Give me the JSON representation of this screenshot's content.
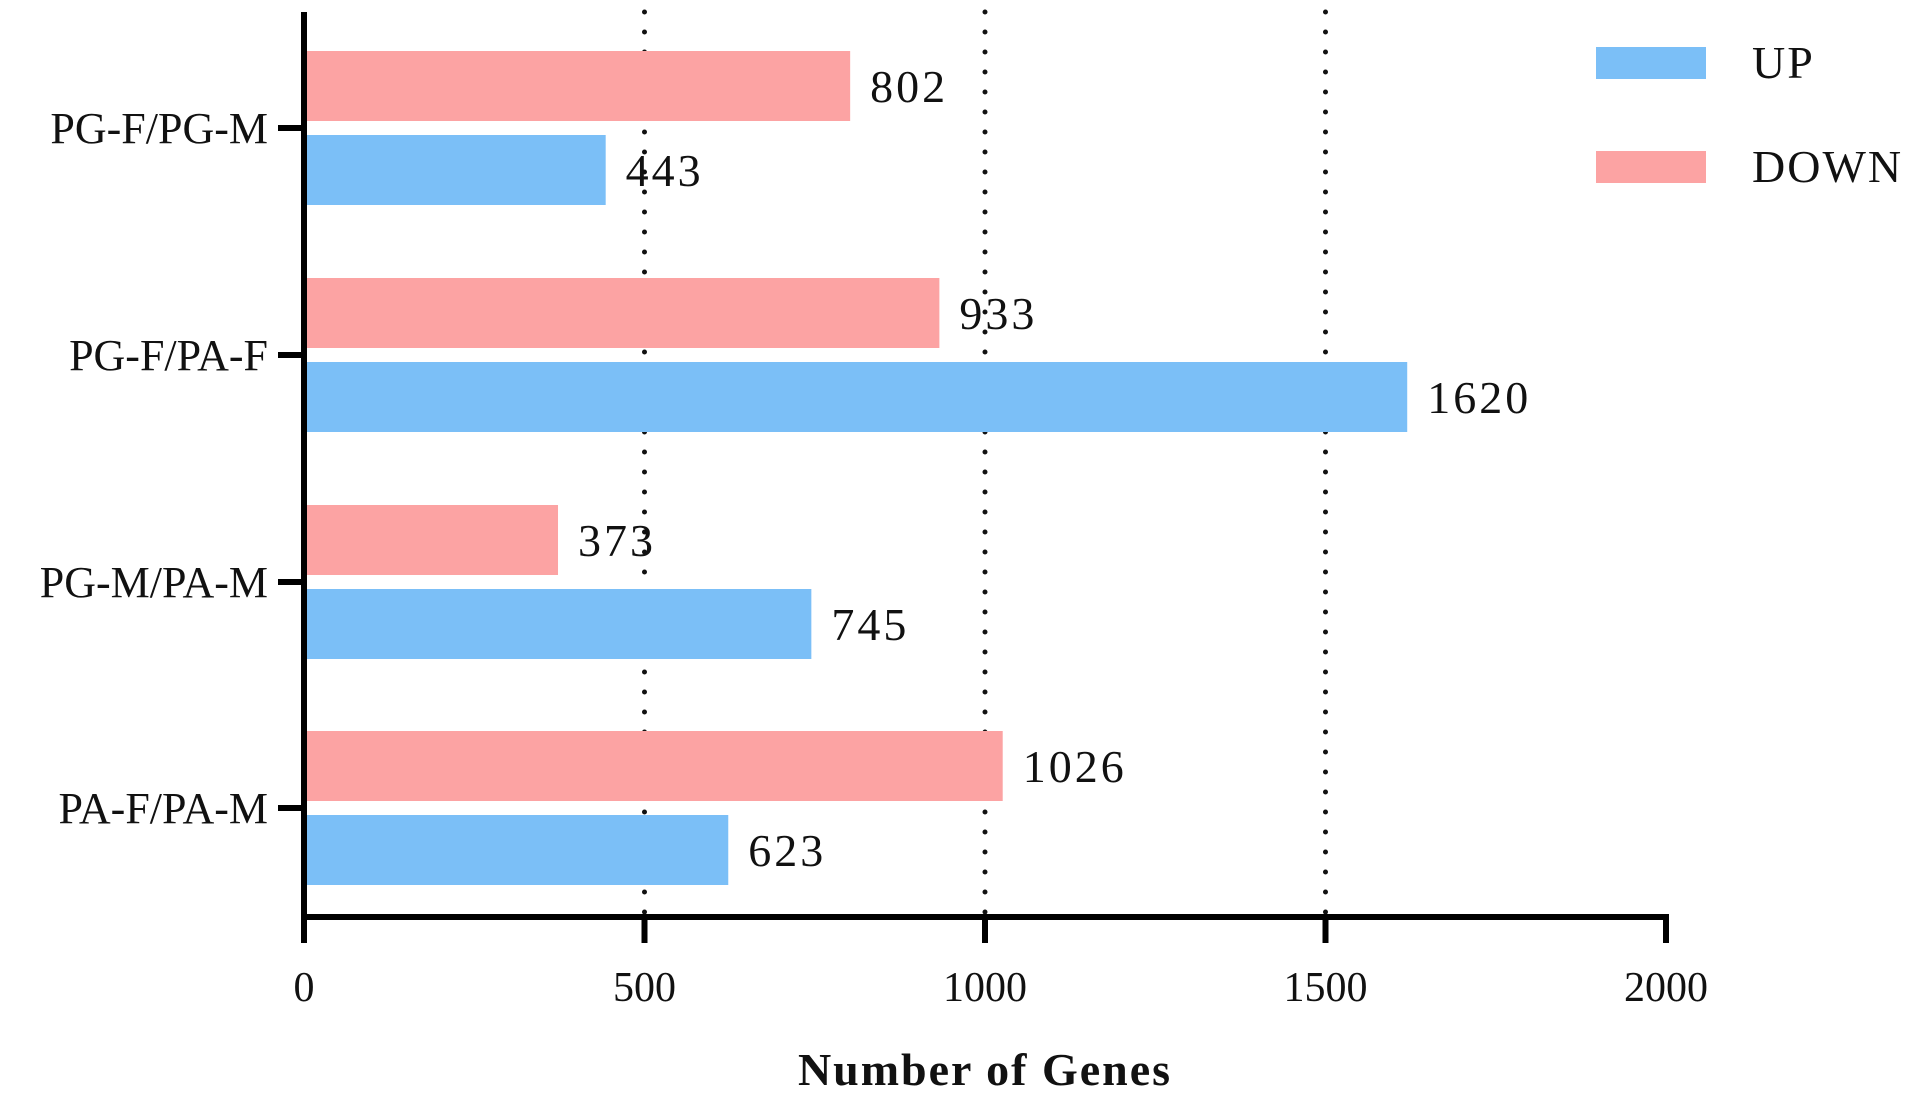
{
  "chart_data": {
    "type": "bar",
    "orientation": "horizontal",
    "categories": [
      "PG-F/PG-M",
      "PG-F/PA-F",
      "PG-M/PA-M",
      "PA-F/PA-M"
    ],
    "series": [
      {
        "name": "UP",
        "color": "#7bbff7",
        "values": [
          443,
          1620,
          745,
          623
        ]
      },
      {
        "name": "DOWN",
        "color": "#fca3a3",
        "values": [
          802,
          933,
          373,
          1026
        ]
      }
    ],
    "xlabel": "Number of Genes",
    "ylabel": "",
    "xlim": [
      0,
      2000
    ],
    "xticks": [
      0,
      500,
      1000,
      1500,
      2000
    ],
    "grid": "vertical dotted lines at 500, 1000, 1500",
    "legend_position": "top-right"
  }
}
